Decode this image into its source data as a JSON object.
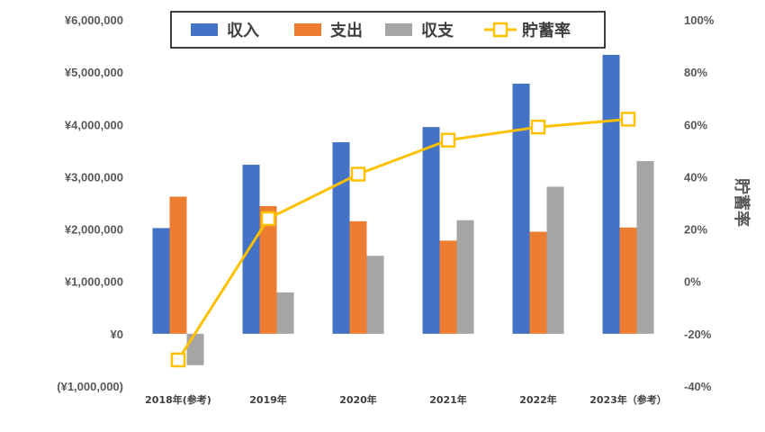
{
  "chart_data": {
    "type": "bar",
    "categories": [
      "2018年(参考)",
      "2019年",
      "2020年",
      "2021年",
      "2022年",
      "2023年（参考）"
    ],
    "series": [
      {
        "name": "収入",
        "kind": "bar",
        "axis": "left",
        "color": "#4472C4",
        "values": [
          2020000,
          3230000,
          3660000,
          3950000,
          4780000,
          5330000
        ]
      },
      {
        "name": "支出",
        "kind": "bar",
        "axis": "left",
        "color": "#ED7D31",
        "values": [
          2620000,
          2440000,
          2150000,
          1780000,
          1950000,
          2030000
        ]
      },
      {
        "name": "収支",
        "kind": "bar",
        "axis": "left",
        "color": "#A5A5A5",
        "values": [
          -600000,
          790000,
          1490000,
          2170000,
          2810000,
          3300000
        ]
      },
      {
        "name": "貯蓄率",
        "kind": "line",
        "axis": "right",
        "color": "#FFC000",
        "values": [
          -30,
          24,
          41,
          54,
          59,
          62
        ]
      }
    ],
    "ylabel_left": "",
    "ylabel_right": "貯蓄率",
    "ylim_left": [
      -1000000,
      6000000
    ],
    "ylim_right": [
      -40,
      100
    ],
    "yticks_left": [
      {
        "value": -1000000,
        "label": "(¥1,000,000)",
        "color": "#C00000"
      },
      {
        "value": 0,
        "label": "¥0"
      },
      {
        "value": 1000000,
        "label": "¥1,000,000"
      },
      {
        "value": 2000000,
        "label": "¥2,000,000"
      },
      {
        "value": 3000000,
        "label": "¥3,000,000"
      },
      {
        "value": 4000000,
        "label": "¥4,000,000"
      },
      {
        "value": 5000000,
        "label": "¥5,000,000"
      },
      {
        "value": 6000000,
        "label": "¥6,000,000"
      }
    ],
    "yticks_right": [
      {
        "value": -40,
        "label": "-40%"
      },
      {
        "value": -20,
        "label": "-20%"
      },
      {
        "value": 0,
        "label": "0%"
      },
      {
        "value": 20,
        "label": "20%"
      },
      {
        "value": 40,
        "label": "40%"
      },
      {
        "value": 60,
        "label": "60%"
      },
      {
        "value": 80,
        "label": "80%"
      },
      {
        "value": 100,
        "label": "100%"
      }
    ],
    "grid": false,
    "legend": "top-center"
  }
}
